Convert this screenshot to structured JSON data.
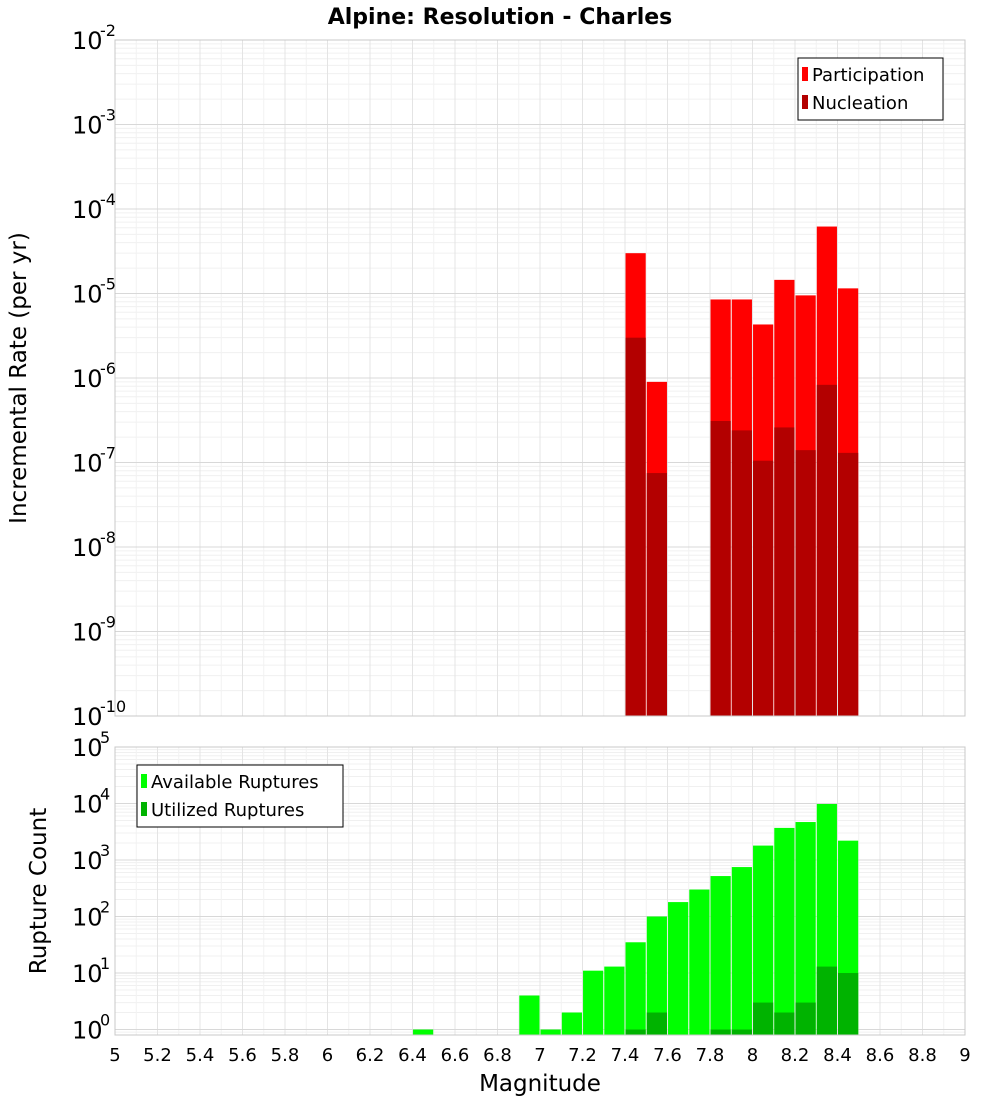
{
  "title": "Alpine: Resolution - Charles",
  "chart_data": [
    {
      "type": "bar",
      "ylabel": "Incremental Rate (per yr)",
      "yscale": "log",
      "ylim": [
        1e-10,
        0.01
      ],
      "y_tick_exponents": [
        -10,
        -9,
        -8,
        -7,
        -6,
        -5,
        -4,
        -3,
        -2
      ],
      "legend": {
        "placement": "top-right",
        "entries": [
          "Participation",
          "Nucleation"
        ]
      },
      "grid": true,
      "bar_width": 0.095,
      "series": [
        {
          "name": "Participation",
          "color": "#ff0000",
          "x": [
            7.45,
            7.55,
            7.85,
            7.95,
            8.05,
            8.15,
            8.25,
            8.35,
            8.45
          ],
          "values": [
            3e-05,
            9e-07,
            8.5e-06,
            8.5e-06,
            4.3e-06,
            1.45e-05,
            9.5e-06,
            6.2e-05,
            1.15e-05
          ]
        },
        {
          "name": "Nucleation",
          "color": "#b30000",
          "x": [
            7.45,
            7.55,
            7.85,
            7.95,
            8.05,
            8.15,
            8.25,
            8.35,
            8.45
          ],
          "values": [
            3e-06,
            7.5e-08,
            3.1e-07,
            2.4e-07,
            1.05e-07,
            2.6e-07,
            1.4e-07,
            8.3e-07,
            1.3e-07
          ]
        }
      ]
    },
    {
      "type": "bar",
      "ylabel": "Rupture Count",
      "xlabel": "Magnitude",
      "yscale": "log",
      "ylim": [
        0.8,
        100000.0
      ],
      "y_tick_exponents": [
        0,
        1,
        2,
        3,
        4,
        5
      ],
      "xlim": [
        5,
        9
      ],
      "x_ticks": [
        "5",
        "5.2",
        "5.4",
        "5.6",
        "5.8",
        "6",
        "6.2",
        "6.4",
        "6.6",
        "6.8",
        "7",
        "7.2",
        "7.4",
        "7.6",
        "7.8",
        "8",
        "8.2",
        "8.4",
        "8.6",
        "8.8",
        "9"
      ],
      "legend": {
        "placement": "top-left",
        "entries": [
          "Available Ruptures",
          "Utilized Ruptures"
        ]
      },
      "grid": true,
      "bar_width": 0.095,
      "series": [
        {
          "name": "Available Ruptures",
          "color": "#00ff00",
          "x": [
            6.45,
            6.95,
            7.05,
            7.15,
            7.25,
            7.35,
            7.45,
            7.55,
            7.65,
            7.75,
            7.85,
            7.95,
            8.05,
            8.15,
            8.25,
            8.35,
            8.45
          ],
          "values": [
            1,
            4,
            1,
            2,
            11,
            13,
            35,
            100,
            180,
            300,
            520,
            750,
            1800,
            3700,
            4700,
            9800,
            2200
          ]
        },
        {
          "name": "Utilized Ruptures",
          "color": "#00b300",
          "x": [
            7.45,
            7.55,
            7.85,
            7.95,
            8.05,
            8.15,
            8.25,
            8.35,
            8.45
          ],
          "values": [
            1,
            2,
            1,
            1,
            3,
            2,
            3,
            13,
            10
          ]
        }
      ]
    }
  ]
}
